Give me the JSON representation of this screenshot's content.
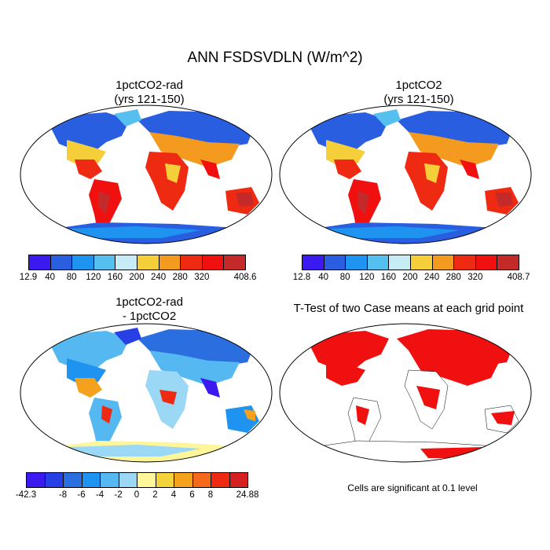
{
  "title": "ANN FSDSVDLN (W/m^2)",
  "panels": {
    "p1": {
      "title_line1": "1pctCO2-rad",
      "title_line2": "(yrs 121-150)"
    },
    "p2": {
      "title_line1": "1pctCO2",
      "title_line2": "(yrs 121-150)"
    },
    "p3": {
      "title_line1": "1pctCO2-rad",
      "title_line2": "- 1pctCO2"
    },
    "p4": {
      "title_line1": "T-Test of two Case means at each grid point"
    }
  },
  "colorbars": {
    "cb1": {
      "labels": [
        "12.9",
        "40",
        "80",
        "120",
        "160",
        "200",
        "240",
        "280",
        "320",
        "408.6"
      ],
      "colors": [
        "#3a1aef",
        "#2a5ee0",
        "#1e93f0",
        "#55c0f0",
        "#c8ecf5",
        "#f4cf3a",
        "#f49a1e",
        "#ef2a12",
        "#f01010",
        "#c42a2a"
      ]
    },
    "cb2": {
      "labels": [
        "12.8",
        "40",
        "80",
        "120",
        "160",
        "200",
        "240",
        "280",
        "320",
        "408.7"
      ],
      "colors": [
        "#3a1aef",
        "#2a5ee0",
        "#1e93f0",
        "#55c0f0",
        "#c8ecf5",
        "#f4cf3a",
        "#f49a1e",
        "#ef2a12",
        "#f01010",
        "#c42a2a"
      ]
    },
    "cb3": {
      "labels": [
        "-42.3",
        "-8",
        "-6",
        "-4",
        "-2",
        "0",
        "2",
        "4",
        "6",
        "8",
        "24.88"
      ],
      "colors": [
        "#3a1aef",
        "#2740e6",
        "#2a6ee0",
        "#1e93f0",
        "#55b8f0",
        "#9ad8f5",
        "#fff59a",
        "#f4d23a",
        "#f4a21e",
        "#f46a1a",
        "#ef2a12",
        "#d42020"
      ]
    }
  },
  "note": "Cells are significant at 0.1 level"
}
